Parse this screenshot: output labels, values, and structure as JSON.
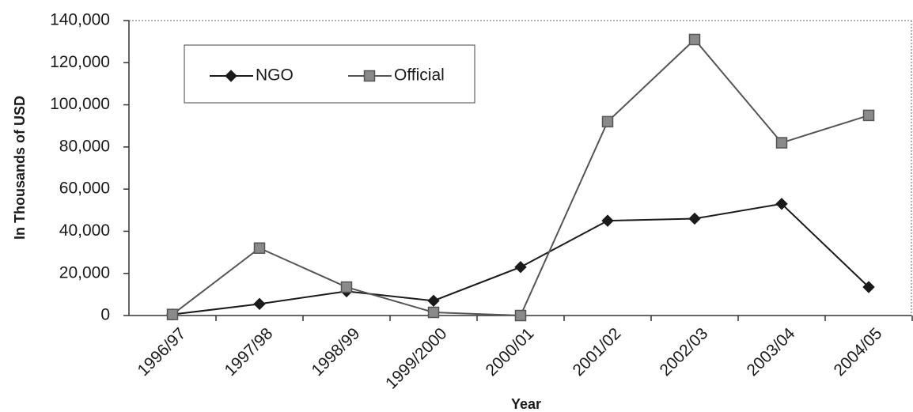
{
  "chart_data": {
    "type": "line",
    "x_label": "Year",
    "y_label": "In Thousands of USD",
    "categories": [
      "1996/97",
      "1997/98",
      "1998/99",
      "1999/2000",
      "2000/01",
      "2001/02",
      "2002/03",
      "2003/04",
      "2004/05"
    ],
    "series": [
      {
        "name": "NGO",
        "color": "#1a1a1a",
        "marker": "diamond",
        "values": [
          500,
          5500,
          11500,
          7000,
          23000,
          45000,
          46000,
          53000,
          13500
        ]
      },
      {
        "name": "Official",
        "color": "#555555",
        "marker": "square",
        "values": [
          500,
          32000,
          13500,
          1500,
          0,
          92000,
          131000,
          82000,
          95000
        ]
      }
    ],
    "ylim": [
      0,
      140000
    ],
    "yticks": [
      0,
      {
        "value": 20000,
        "label": "20,000"
      },
      {
        "value": 40000,
        "label": "40,000"
      },
      {
        "value": 60000,
        "label": "60,000"
      },
      {
        "value": 80000,
        "label": "80,000"
      },
      {
        "value": 100000,
        "label": "100,000"
      },
      {
        "value": 120000,
        "label": "120,000"
      },
      {
        "value": 140000,
        "label": "140,000"
      }
    ],
    "legend": "upper-left"
  }
}
